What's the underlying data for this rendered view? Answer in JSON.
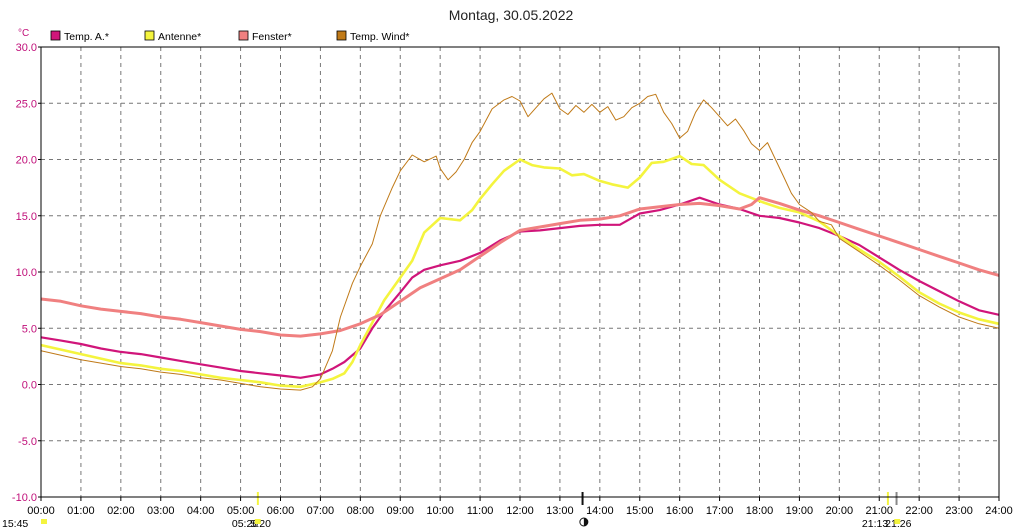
{
  "chart_data": {
    "type": "line",
    "title": "Montag, 30.05.2022",
    "y_unit": "°C",
    "ylim": [
      -10,
      30
    ],
    "yticks": [
      "30.0",
      "25.0",
      "20.0",
      "15.0",
      "10.0",
      "5.0",
      "0.0",
      "-5.0",
      "-10.0"
    ],
    "xlim": [
      0,
      24
    ],
    "xticks": [
      "00:00",
      "01:00",
      "02:00",
      "03:00",
      "04:00",
      "05:00",
      "06:00",
      "07:00",
      "08:00",
      "09:00",
      "10:00",
      "11:00",
      "12:00",
      "13:00",
      "14:00",
      "15:00",
      "16:00",
      "17:00",
      "18:00",
      "19:00",
      "20:00",
      "21:00",
      "22:00",
      "23:00",
      "24:00"
    ],
    "grid": true,
    "legend_position": "top-left",
    "series": [
      {
        "name": "Temp. A.*",
        "color": "#d0157a",
        "width": 2.2,
        "points": [
          [
            0,
            4.2
          ],
          [
            0.5,
            3.9
          ],
          [
            1,
            3.6
          ],
          [
            1.5,
            3.2
          ],
          [
            2,
            2.9
          ],
          [
            2.5,
            2.7
          ],
          [
            3,
            2.4
          ],
          [
            3.5,
            2.1
          ],
          [
            4,
            1.8
          ],
          [
            4.5,
            1.5
          ],
          [
            5,
            1.2
          ],
          [
            5.5,
            1.0
          ],
          [
            6,
            0.8
          ],
          [
            6.5,
            0.6
          ],
          [
            7,
            0.9
          ],
          [
            7.3,
            1.4
          ],
          [
            7.6,
            2.0
          ],
          [
            8,
            3.2
          ],
          [
            8.3,
            5.0
          ],
          [
            8.6,
            6.5
          ],
          [
            9,
            8.2
          ],
          [
            9.3,
            9.5
          ],
          [
            9.6,
            10.2
          ],
          [
            10,
            10.6
          ],
          [
            10.5,
            11.0
          ],
          [
            11,
            11.7
          ],
          [
            11.5,
            12.8
          ],
          [
            12,
            13.6
          ],
          [
            12.5,
            13.7
          ],
          [
            13,
            13.9
          ],
          [
            13.5,
            14.1
          ],
          [
            14,
            14.2
          ],
          [
            14.5,
            14.2
          ],
          [
            15,
            15.2
          ],
          [
            15.5,
            15.5
          ],
          [
            16,
            16.0
          ],
          [
            16.5,
            16.6
          ],
          [
            17,
            16.0
          ],
          [
            17.5,
            15.6
          ],
          [
            18,
            15.0
          ],
          [
            18.5,
            14.8
          ],
          [
            19,
            14.4
          ],
          [
            19.5,
            13.9
          ],
          [
            20,
            13.2
          ],
          [
            20.5,
            12.4
          ],
          [
            21,
            11.3
          ],
          [
            21.5,
            10.2
          ],
          [
            22,
            9.2
          ],
          [
            22.5,
            8.3
          ],
          [
            23,
            7.4
          ],
          [
            23.5,
            6.6
          ],
          [
            24,
            6.2
          ]
        ]
      },
      {
        "name": "Antenne*",
        "color": "#f4f43e",
        "width": 2.6,
        "points": [
          [
            0,
            3.5
          ],
          [
            0.5,
            3.1
          ],
          [
            1,
            2.7
          ],
          [
            1.5,
            2.3
          ],
          [
            2,
            1.9
          ],
          [
            2.5,
            1.7
          ],
          [
            3,
            1.4
          ],
          [
            3.5,
            1.2
          ],
          [
            4,
            0.9
          ],
          [
            4.5,
            0.6
          ],
          [
            5,
            0.4
          ],
          [
            5.5,
            0.2
          ],
          [
            6,
            -0.1
          ],
          [
            6.5,
            -0.2
          ],
          [
            7,
            0.2
          ],
          [
            7.3,
            0.5
          ],
          [
            7.6,
            1.0
          ],
          [
            7.8,
            2.0
          ],
          [
            8,
            3.5
          ],
          [
            8.3,
            5.5
          ],
          [
            8.6,
            7.5
          ],
          [
            9,
            9.5
          ],
          [
            9.3,
            11.0
          ],
          [
            9.6,
            13.5
          ],
          [
            10,
            14.8
          ],
          [
            10.5,
            14.6
          ],
          [
            10.8,
            15.5
          ],
          [
            11,
            16.5
          ],
          [
            11.3,
            17.8
          ],
          [
            11.6,
            19.0
          ],
          [
            12,
            20.0
          ],
          [
            12.3,
            19.5
          ],
          [
            12.6,
            19.3
          ],
          [
            13,
            19.2
          ],
          [
            13.3,
            18.6
          ],
          [
            13.6,
            18.7
          ],
          [
            14,
            18.1
          ],
          [
            14.3,
            17.8
          ],
          [
            14.7,
            17.5
          ],
          [
            15,
            18.4
          ],
          [
            15.3,
            19.7
          ],
          [
            15.6,
            19.8
          ],
          [
            16,
            20.3
          ],
          [
            16.3,
            19.6
          ],
          [
            16.6,
            19.5
          ],
          [
            17,
            18.2
          ],
          [
            17.5,
            17.0
          ],
          [
            18,
            16.3
          ],
          [
            18.5,
            15.7
          ],
          [
            19,
            15.3
          ],
          [
            19.5,
            14.5
          ],
          [
            20,
            13.2
          ],
          [
            20.5,
            12.0
          ],
          [
            21,
            10.9
          ],
          [
            21.5,
            9.6
          ],
          [
            22,
            8.2
          ],
          [
            22.5,
            7.2
          ],
          [
            23,
            6.4
          ],
          [
            23.5,
            5.8
          ],
          [
            24,
            5.4
          ]
        ]
      },
      {
        "name": "Fenster*",
        "color": "#f08080",
        "width": 3,
        "points": [
          [
            0,
            7.6
          ],
          [
            0.5,
            7.4
          ],
          [
            1,
            7.0
          ],
          [
            1.5,
            6.7
          ],
          [
            2,
            6.5
          ],
          [
            2.5,
            6.3
          ],
          [
            3,
            6.0
          ],
          [
            3.5,
            5.8
          ],
          [
            4,
            5.5
          ],
          [
            4.5,
            5.2
          ],
          [
            5,
            4.9
          ],
          [
            5.5,
            4.7
          ],
          [
            6,
            4.4
          ],
          [
            6.5,
            4.3
          ],
          [
            7,
            4.5
          ],
          [
            7.5,
            4.8
          ],
          [
            8,
            5.4
          ],
          [
            8.5,
            6.2
          ],
          [
            9,
            7.4
          ],
          [
            9.5,
            8.6
          ],
          [
            10,
            9.4
          ],
          [
            10.5,
            10.2
          ],
          [
            11,
            11.4
          ],
          [
            11.5,
            12.6
          ],
          [
            12,
            13.7
          ],
          [
            12.5,
            14.0
          ],
          [
            13,
            14.3
          ],
          [
            13.5,
            14.6
          ],
          [
            14,
            14.7
          ],
          [
            14.5,
            15.0
          ],
          [
            15,
            15.6
          ],
          [
            15.5,
            15.8
          ],
          [
            16,
            16.0
          ],
          [
            16.5,
            16.1
          ],
          [
            17,
            15.9
          ],
          [
            17.5,
            15.6
          ],
          [
            17.8,
            16.0
          ],
          [
            18,
            16.6
          ],
          [
            18.5,
            16.1
          ],
          [
            19,
            15.5
          ],
          [
            19.5,
            15.0
          ],
          [
            20,
            14.4
          ],
          [
            20.5,
            13.8
          ],
          [
            21,
            13.2
          ],
          [
            21.5,
            12.6
          ],
          [
            22,
            12.0
          ],
          [
            22.5,
            11.4
          ],
          [
            23,
            10.8
          ],
          [
            23.5,
            10.2
          ],
          [
            24,
            9.7
          ]
        ]
      },
      {
        "name": "Temp. Wind*",
        "color": "#c07a18",
        "width": 1,
        "points": [
          [
            0,
            3.0
          ],
          [
            0.5,
            2.6
          ],
          [
            1,
            2.2
          ],
          [
            1.5,
            1.9
          ],
          [
            2,
            1.6
          ],
          [
            2.5,
            1.4
          ],
          [
            3,
            1.1
          ],
          [
            3.5,
            0.9
          ],
          [
            4,
            0.6
          ],
          [
            4.5,
            0.4
          ],
          [
            5,
            0.1
          ],
          [
            5.5,
            -0.2
          ],
          [
            6,
            -0.4
          ],
          [
            6.5,
            -0.5
          ],
          [
            6.8,
            -0.2
          ],
          [
            7,
            0.5
          ],
          [
            7.3,
            3.0
          ],
          [
            7.5,
            6.0
          ],
          [
            7.8,
            9.0
          ],
          [
            8,
            10.5
          ],
          [
            8.3,
            12.5
          ],
          [
            8.5,
            15.0
          ],
          [
            8.8,
            17.5
          ],
          [
            9,
            19.0
          ],
          [
            9.3,
            20.4
          ],
          [
            9.6,
            19.8
          ],
          [
            9.9,
            20.3
          ],
          [
            10,
            19.2
          ],
          [
            10.2,
            18.2
          ],
          [
            10.4,
            18.9
          ],
          [
            10.6,
            20.0
          ],
          [
            10.8,
            21.5
          ],
          [
            11,
            22.5
          ],
          [
            11.3,
            24.5
          ],
          [
            11.6,
            25.3
          ],
          [
            11.8,
            25.6
          ],
          [
            12,
            25.2
          ],
          [
            12.2,
            23.8
          ],
          [
            12.4,
            24.6
          ],
          [
            12.6,
            25.4
          ],
          [
            12.8,
            25.9
          ],
          [
            13,
            24.5
          ],
          [
            13.2,
            24.0
          ],
          [
            13.4,
            24.8
          ],
          [
            13.6,
            24.2
          ],
          [
            13.8,
            24.9
          ],
          [
            14,
            24.2
          ],
          [
            14.2,
            24.7
          ],
          [
            14.4,
            23.5
          ],
          [
            14.6,
            23.8
          ],
          [
            14.8,
            24.6
          ],
          [
            15,
            25.0
          ],
          [
            15.2,
            25.6
          ],
          [
            15.4,
            25.8
          ],
          [
            15.6,
            24.2
          ],
          [
            15.8,
            23.2
          ],
          [
            16,
            21.9
          ],
          [
            16.2,
            22.5
          ],
          [
            16.4,
            24.2
          ],
          [
            16.6,
            25.3
          ],
          [
            16.8,
            24.6
          ],
          [
            17,
            23.8
          ],
          [
            17.2,
            23.0
          ],
          [
            17.4,
            23.6
          ],
          [
            17.6,
            22.6
          ],
          [
            17.8,
            21.4
          ],
          [
            18,
            20.8
          ],
          [
            18.2,
            21.5
          ],
          [
            18.4,
            20.0
          ],
          [
            18.6,
            18.5
          ],
          [
            18.8,
            17.0
          ],
          [
            19,
            16.0
          ],
          [
            19.3,
            15.3
          ],
          [
            19.5,
            14.5
          ],
          [
            19.8,
            14.2
          ],
          [
            20,
            13.0
          ],
          [
            20.5,
            11.8
          ],
          [
            21,
            10.6
          ],
          [
            21.5,
            9.3
          ],
          [
            22,
            7.9
          ],
          [
            22.5,
            6.9
          ],
          [
            23,
            6.0
          ],
          [
            23.5,
            5.4
          ],
          [
            24,
            5.0
          ]
        ]
      }
    ],
    "events": [
      {
        "hour": 5.433,
        "color": "#f4f43e"
      },
      {
        "hour": 13.567,
        "color": "#111111"
      },
      {
        "hour": 21.217,
        "color": "#f4f43e"
      },
      {
        "hour": 21.433,
        "color": "#888888"
      }
    ],
    "bottom_labels": [
      {
        "text": "15:45",
        "hour": 0
      },
      {
        "text": "05:26",
        "hour": 5.433
      },
      {
        "text": "5:20",
        "hour": 5.9
      },
      {
        "text": "21:13",
        "hour": 21.217
      },
      {
        "text": "21:26",
        "hour": 21.8
      }
    ],
    "bottom_symbols": [
      {
        "symbol": "sun-icon",
        "hour": 0.1,
        "color": "#f4f43e"
      },
      {
        "symbol": "sunrise-icon",
        "hour": 5.43,
        "color": "#f4f43e"
      },
      {
        "symbol": "moon-icon",
        "hour": 13.6,
        "color": "#111111"
      },
      {
        "symbol": "sunset-icon",
        "hour": 21.45,
        "color": "#f4f43e"
      }
    ]
  }
}
